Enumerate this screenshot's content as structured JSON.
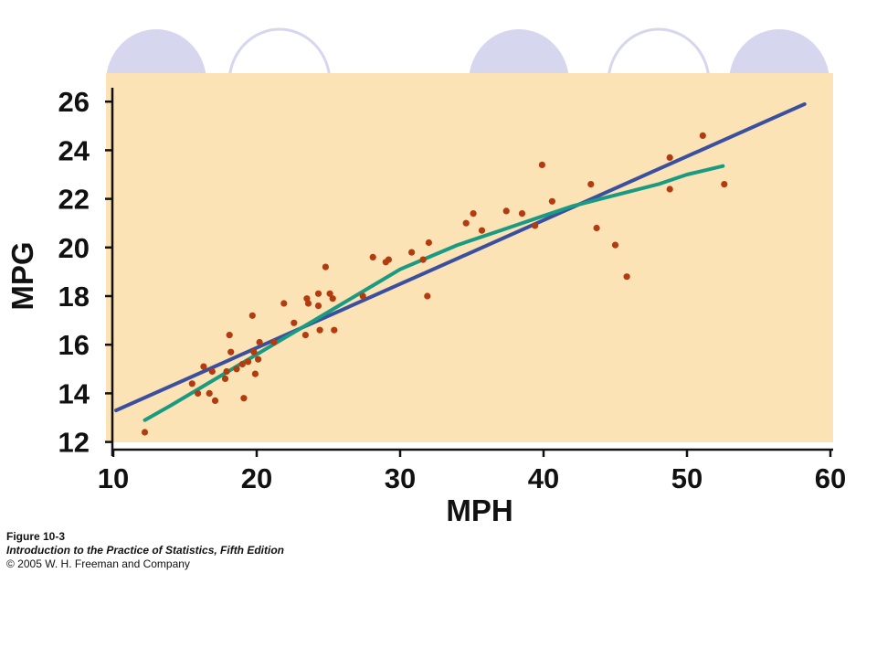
{
  "caption": {
    "figure": "Figure 10-3",
    "book": "Introduction to the Practice of Statistics, Fifth Edition",
    "copyright": "© 2005 W. H. Freeman and Company"
  },
  "colors": {
    "plot_background": "#fbe3b6",
    "points": "#b23c10",
    "regression_line": "#3a4f9e",
    "smooth_curve": "#1a9a82",
    "decoration": "#d6d6ee",
    "axis": "#111111"
  },
  "chart_data": {
    "type": "scatter",
    "xlabel": "MPH",
    "ylabel": "MPG",
    "xlim": [
      10,
      60
    ],
    "ylim": [
      12,
      27
    ],
    "xticks": [
      10,
      20,
      30,
      40,
      50,
      60
    ],
    "yticks": [
      12,
      14,
      16,
      18,
      20,
      22,
      24,
      26
    ],
    "grid": false,
    "points": [
      [
        12.2,
        12.4
      ],
      [
        15.5,
        14.4
      ],
      [
        15.9,
        14.0
      ],
      [
        16.3,
        15.1
      ],
      [
        16.7,
        14.0
      ],
      [
        16.9,
        14.9
      ],
      [
        17.1,
        13.7
      ],
      [
        17.8,
        14.6
      ],
      [
        17.9,
        14.9
      ],
      [
        18.1,
        16.4
      ],
      [
        18.2,
        15.7
      ],
      [
        18.6,
        15.0
      ],
      [
        19.0,
        15.2
      ],
      [
        19.1,
        13.8
      ],
      [
        19.4,
        15.3
      ],
      [
        19.7,
        17.2
      ],
      [
        19.8,
        15.7
      ],
      [
        19.9,
        14.8
      ],
      [
        20.1,
        15.4
      ],
      [
        20.2,
        16.1
      ],
      [
        21.2,
        16.1
      ],
      [
        21.9,
        17.7
      ],
      [
        22.6,
        16.9
      ],
      [
        23.4,
        16.4
      ],
      [
        23.5,
        17.9
      ],
      [
        23.6,
        17.7
      ],
      [
        24.3,
        18.1
      ],
      [
        24.3,
        17.6
      ],
      [
        24.4,
        16.6
      ],
      [
        24.8,
        19.2
      ],
      [
        25.1,
        18.1
      ],
      [
        25.3,
        17.9
      ],
      [
        25.4,
        16.6
      ],
      [
        27.4,
        18.0
      ],
      [
        28.1,
        19.6
      ],
      [
        29.0,
        19.4
      ],
      [
        29.2,
        19.5
      ],
      [
        30.8,
        19.8
      ],
      [
        31.6,
        19.5
      ],
      [
        32.0,
        20.2
      ],
      [
        31.9,
        18.0
      ],
      [
        34.6,
        21.0
      ],
      [
        35.1,
        21.4
      ],
      [
        35.7,
        20.7
      ],
      [
        37.4,
        21.5
      ],
      [
        38.5,
        21.4
      ],
      [
        39.4,
        20.9
      ],
      [
        39.9,
        23.4
      ],
      [
        40.6,
        21.9
      ],
      [
        43.3,
        22.6
      ],
      [
        43.7,
        20.8
      ],
      [
        45.0,
        20.1
      ],
      [
        45.8,
        18.8
      ],
      [
        48.8,
        23.7
      ],
      [
        48.8,
        22.4
      ],
      [
        51.1,
        24.6
      ],
      [
        52.6,
        22.6
      ]
    ],
    "series": [
      {
        "type": "line",
        "role": "regression",
        "x": [
          10.2,
          58.2
        ],
        "y": [
          13.3,
          25.9
        ]
      },
      {
        "type": "line",
        "role": "smooth",
        "x": [
          12.2,
          14,
          16,
          18,
          20,
          22,
          24,
          26,
          28,
          30,
          32,
          34,
          36,
          38,
          40,
          42,
          44,
          46,
          48,
          50,
          52.5
        ],
        "y": [
          12.9,
          13.5,
          14.2,
          14.9,
          15.6,
          16.3,
          17.0,
          17.7,
          18.4,
          19.1,
          19.6,
          20.1,
          20.5,
          20.9,
          21.3,
          21.7,
          22.0,
          22.3,
          22.6,
          23.0,
          23.35
        ]
      }
    ]
  }
}
